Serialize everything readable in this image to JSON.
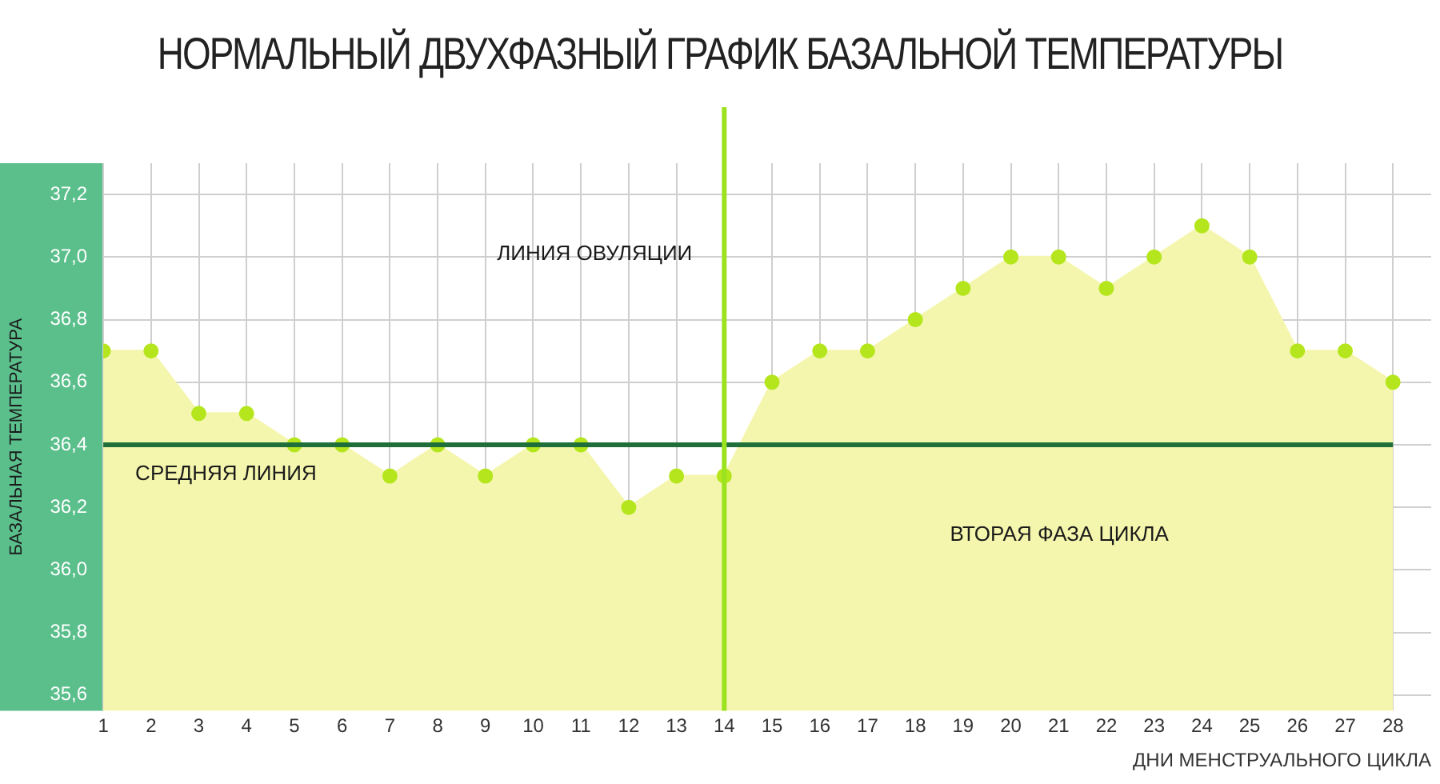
{
  "chart_data": {
    "type": "area",
    "title": "НОРМАЛЬНЫЙ ДВУХФАЗНЫЙ ГРАФИК БАЗАЛЬНОЙ ТЕМПЕРАТУРЫ",
    "xlabel": "ДНИ МЕНСТРУАЛЬНОГО ЦИКЛА",
    "ylabel": "БАЗАЛЬНАЯ ТЕМПЕРАТУРА",
    "x": [
      1,
      2,
      3,
      4,
      5,
      6,
      7,
      8,
      9,
      10,
      11,
      12,
      13,
      14,
      15,
      16,
      17,
      18,
      19,
      20,
      21,
      22,
      23,
      24,
      25,
      26,
      27,
      28
    ],
    "series": [
      {
        "color": "#f4f6ad",
        "colors": [
          "#b5e61d",
          "#b5e61d",
          "#b5e61d",
          "#b5e61d",
          "#b5e61d",
          "#b5e61d",
          "#b5e61d",
          "#b5e61d",
          "#b5e61d",
          "#b5e61d",
          "#b5e61d",
          "#b5e61d",
          "#b5e61d",
          "#b5e61d",
          "#b5e61d",
          "#b5e61d",
          "#b5e61d",
          "#b5e61d",
          "#b5e61d",
          "#b5e61d",
          "#b5e61d",
          "#b5e61d",
          "#b5e61d",
          "#b5e61d",
          "#b5e61d",
          "#b5e61d",
          "#b5e61d",
          "#b5e61d"
        ],
        "values": [
          36.7,
          36.7,
          36.5,
          36.5,
          36.4,
          36.4,
          36.3,
          36.4,
          36.3,
          36.4,
          36.4,
          36.2,
          36.3,
          36.3,
          36.6,
          36.7,
          36.7,
          36.8,
          36.9,
          37.0,
          37.0,
          36.9,
          37.0,
          37.1,
          37.0,
          36.7,
          36.7,
          36.6
        ]
      }
    ],
    "xlim": [
      1,
      28.8
    ],
    "xticks": [
      1,
      2,
      3,
      4,
      5,
      6,
      7,
      8,
      9,
      10,
      11,
      12,
      13,
      14,
      15,
      16,
      17,
      18,
      19,
      20,
      21,
      22,
      23,
      24,
      25,
      26,
      27,
      28
    ],
    "ylim": [
      35.55,
      37.3
    ],
    "yticks": [
      {
        "value": 35.6,
        "label": "35,6"
      },
      {
        "value": 35.8,
        "label": "35,8"
      },
      {
        "value": 36.0,
        "label": "36,0"
      },
      {
        "value": 36.2,
        "label": "36,2"
      },
      {
        "value": 36.4,
        "label": "36,4"
      },
      {
        "value": 36.6,
        "label": "36,6"
      },
      {
        "value": 36.8,
        "label": "36,8"
      },
      {
        "value": 37.0,
        "label": "37,0"
      },
      {
        "value": 37.2,
        "label": "37,2"
      }
    ],
    "ref_lines": [
      {
        "axis": "y",
        "value": 36.4,
        "label": "СРЕДНЯЯ ЛИНИЯ",
        "color": "#1e6f3a"
      },
      {
        "axis": "x",
        "value": 14,
        "label": "ЛИНИЯ ОВУЛЯЦИИ",
        "color": "#9be31e"
      }
    ],
    "annotations": [
      "ВТОРАЯ ФАЗА ЦИКЛА"
    ],
    "grid": true,
    "marker": "circle",
    "legend": false
  }
}
